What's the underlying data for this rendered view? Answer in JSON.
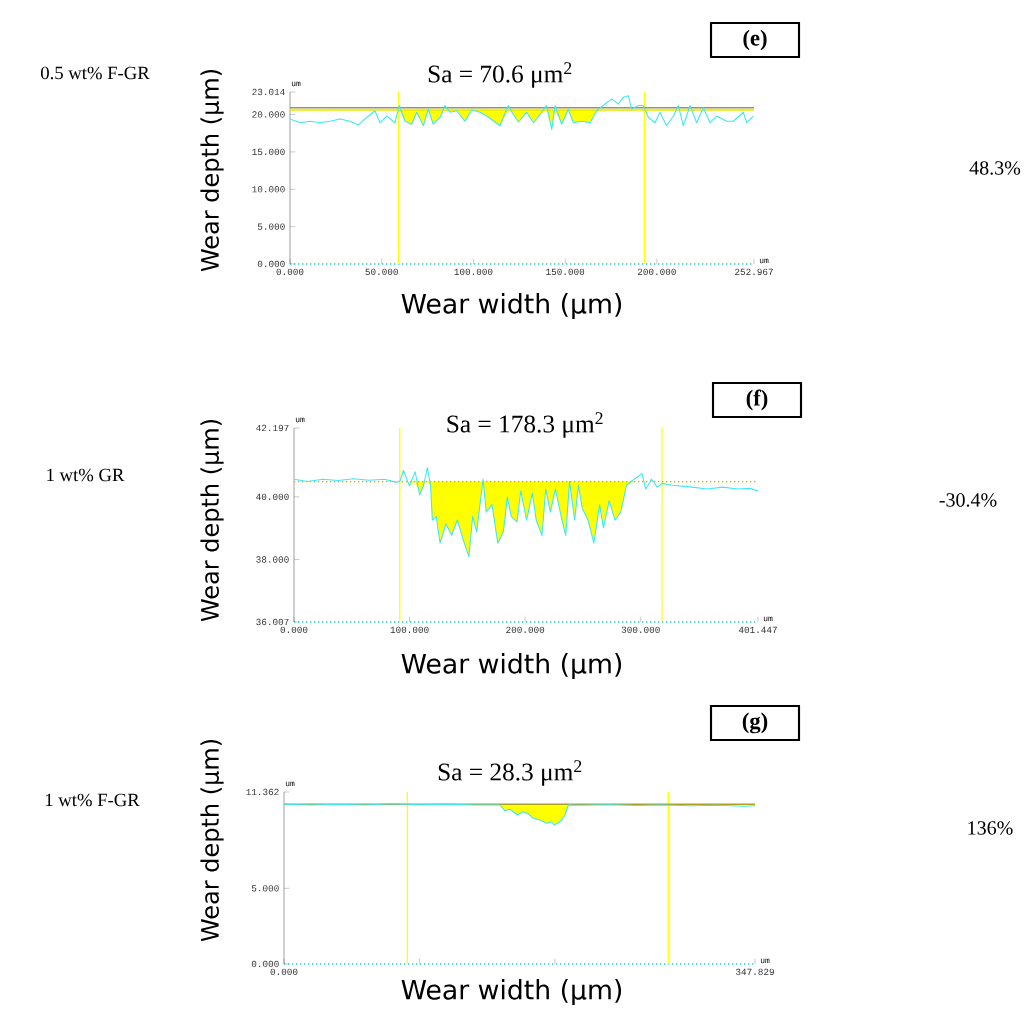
{
  "chart_data": [
    {
      "type": "line",
      "title": "(e)",
      "xlabel": "Wear width (μm)",
      "ylabel": "Wear depth (μm)",
      "annotations": [
        "Sa = 70.6 μm$^{2}$",
        "0.5 wt% F-GR",
        "48.3%",
        "um",
        "um"
      ],
      "xlim": [
        0,
        252.967
      ],
      "ylim": [
        0,
        23.014
      ],
      "xticks": [
        {
          "value": 0,
          "label": "0.000"
        },
        {
          "value": 50,
          "label": "50.000"
        },
        {
          "value": 100,
          "label": "100.000"
        },
        {
          "value": 150,
          "label": "150.000"
        },
        {
          "value": 200,
          "label": "200.000"
        },
        {
          "value": 252.967,
          "label": "252.967"
        }
      ],
      "yticks": [
        {
          "value": 0,
          "label": "0.000"
        },
        {
          "value": 5,
          "label": "5.000"
        },
        {
          "value": 10,
          "label": "10.000"
        },
        {
          "value": 15,
          "label": "15.000"
        },
        {
          "value": 20,
          "label": "20.000"
        },
        {
          "value": 23.014,
          "label": "23.014"
        }
      ],
      "ref_lines": [
        {
          "axis": "x",
          "value": 59.1,
          "color": "#ffff00"
        },
        {
          "axis": "x",
          "value": 193.2,
          "color": "#ffff00"
        },
        {
          "axis": "y",
          "value": 20.9,
          "color": "#a09a30"
        },
        {
          "axis": "y",
          "value": 20.6,
          "color": "#e6e600"
        }
      ],
      "series": [
        {
          "type": "area",
          "color": "#ffff00",
          "x": [
            59.1,
            59.6,
            62.7,
            66.3,
            69.1,
            72.7,
            75.4,
            78.1,
            81.8,
            84.5,
            87.2,
            90.9,
            95.4,
            99.0,
            103.6,
            107.2,
            114.5,
            119.0,
            121.8,
            124.5,
            129.0,
            132.7,
            136.3,
            139.9,
            142.7,
            144.5,
            148.1,
            151.7,
            154.5,
            159.0,
            163.6,
            167.2,
            171.7,
            193.2
          ],
          "values": [
            20.6,
            20.6,
            19.1,
            18.7,
            20.3,
            18.5,
            20.6,
            18.7,
            19.6,
            20.6,
            20.3,
            20.5,
            19.1,
            20.6,
            20.3,
            19.8,
            18.5,
            20.6,
            20.0,
            19.0,
            20.3,
            18.9,
            20.0,
            20.6,
            18.0,
            20.6,
            18.7,
            20.6,
            18.9,
            19.1,
            18.9,
            20.5,
            20.6,
            20.6
          ]
        },
        {
          "color": "#3ee8f2",
          "x": [
            0.0,
            5.5,
            10.9,
            16.4,
            21.8,
            27.3,
            32.7,
            37.3,
            41.8,
            46.3,
            49.1,
            52.7,
            57.2,
            59.6,
            62.7,
            66.3,
            69.1,
            72.7,
            75.4,
            78.1,
            81.8,
            84.5,
            87.2,
            90.9,
            95.4,
            99.0,
            103.6,
            107.2,
            114.5,
            119.0,
            121.8,
            124.5,
            129.0,
            132.7,
            136.3,
            139.9,
            142.7,
            144.5,
            148.1,
            151.7,
            154.5,
            159.0,
            163.6,
            167.2,
            171.7,
            175.4,
            179.0,
            181.7,
            184.5,
            186.3,
            189.9,
            192.6,
            195.4,
            199.0,
            201.7,
            205.3,
            209.0,
            211.7,
            214.4,
            218.1,
            221.7,
            225.3,
            229.0,
            232.6,
            238.1,
            241.7,
            247.1,
            249.0,
            252.6
          ],
          "values": [
            19.4,
            18.9,
            19.1,
            18.9,
            19.1,
            19.4,
            19.1,
            18.6,
            19.6,
            20.5,
            18.9,
            19.8,
            18.9,
            21.2,
            19.1,
            18.7,
            20.3,
            18.5,
            20.7,
            18.7,
            19.6,
            21.2,
            20.3,
            20.5,
            19.1,
            20.6,
            20.3,
            19.8,
            18.5,
            21.2,
            20.0,
            19.0,
            20.3,
            18.9,
            20.0,
            21.2,
            18.0,
            21.2,
            18.7,
            20.7,
            18.9,
            19.1,
            18.9,
            20.5,
            21.4,
            22.1,
            21.4,
            22.3,
            22.5,
            20.7,
            21.2,
            21.2,
            19.6,
            18.9,
            20.3,
            18.5,
            19.8,
            21.2,
            18.5,
            21.2,
            18.9,
            20.9,
            18.9,
            19.8,
            19.1,
            19.1,
            20.3,
            18.9,
            19.8
          ]
        }
      ]
    },
    {
      "type": "line",
      "title": "(f)",
      "xlabel": "Wear width (μm)",
      "ylabel": "Wear depth (μm)",
      "annotations": [
        "Sa = 178.3 μm$^{2}$",
        "1 wt% GR",
        "-30.4%",
        "um",
        "um"
      ],
      "xlim": [
        0,
        401.447
      ],
      "ylim": [
        36.007,
        42.197
      ],
      "xticks": [
        {
          "value": 0,
          "label": "0.000"
        },
        {
          "value": 100,
          "label": "100.000"
        },
        {
          "value": 200,
          "label": "200.000"
        },
        {
          "value": 300,
          "label": "300.000"
        },
        {
          "value": 401.447,
          "label": "401.447"
        }
      ],
      "yticks": [
        {
          "value": 36.007,
          "label": "36.007"
        },
        {
          "value": 38,
          "label": "38.000"
        },
        {
          "value": 40,
          "label": "40.000"
        },
        {
          "value": 42.197,
          "label": "42.197"
        }
      ],
      "ref_lines": [
        {
          "axis": "x",
          "value": 91.5,
          "color": "#ffff00"
        },
        {
          "axis": "x",
          "value": 318.3,
          "color": "#ffff00"
        },
        {
          "axis": "y",
          "value": 40.49,
          "color": "#c8b400",
          "line_style": "dotted"
        }
      ],
      "series": [
        {
          "type": "area",
          "color": "#ffff00",
          "x": [
            99.8,
            104.8,
            108.7,
            112.1,
            115.4,
            118.1,
            119.7,
            123.0,
            126.4,
            131.4,
            136.4,
            141.3,
            146.3,
            151.3,
            154.6,
            158.0,
            163.6,
            166.3,
            171.3,
            176.3,
            181.2,
            184.6,
            187.9,
            192.9,
            196.2,
            201.2,
            206.2,
            209.5,
            214.5,
            217.8,
            221.8,
            226.1,
            231.1,
            235.1,
            238.4,
            242.8,
            246.1,
            249.4,
            254.4,
            259.4,
            264.4,
            267.7,
            272.7,
            277.7,
            282.7,
            287.7,
            294.3
          ],
          "values": [
            40.35,
            40.49,
            40.06,
            40.37,
            40.49,
            40.37,
            39.26,
            39.38,
            38.52,
            39.14,
            38.77,
            39.26,
            38.64,
            38.09,
            39.38,
            38.89,
            40.49,
            39.51,
            39.75,
            38.52,
            38.89,
            40.0,
            39.38,
            39.2,
            40.19,
            39.26,
            40.12,
            39.26,
            38.77,
            40.25,
            39.51,
            40.25,
            39.38,
            38.77,
            40.49,
            39.26,
            40.37,
            39.63,
            39.26,
            38.52,
            39.75,
            39.01,
            39.88,
            39.26,
            39.51,
            40.37,
            40.49
          ]
        },
        {
          "color": "#3ee8f2",
          "x": [
            0.0,
            11.6,
            25.0,
            38.2,
            51.6,
            64.9,
            78.2,
            88.1,
            91.5,
            94.8,
            99.8,
            104.8,
            108.7,
            112.1,
            115.4,
            118.1,
            119.7,
            123.0,
            126.4,
            131.4,
            136.4,
            141.3,
            146.3,
            151.3,
            154.6,
            158.0,
            163.6,
            166.3,
            171.3,
            176.3,
            181.2,
            184.6,
            187.9,
            192.9,
            196.2,
            201.2,
            206.2,
            209.5,
            214.5,
            217.8,
            221.8,
            226.1,
            231.1,
            235.1,
            238.4,
            242.8,
            246.1,
            249.4,
            254.4,
            259.4,
            264.4,
            267.7,
            272.7,
            277.7,
            282.7,
            287.7,
            294.3,
            301.0,
            304.3,
            309.3,
            314.3,
            318.3,
            327.6,
            344.2,
            357.5,
            370.8,
            384.1,
            394.1,
            401.4
          ],
          "values": [
            40.56,
            40.49,
            40.56,
            40.52,
            40.58,
            40.53,
            40.56,
            40.47,
            40.49,
            40.84,
            40.35,
            40.8,
            40.06,
            40.37,
            40.93,
            40.37,
            39.26,
            39.38,
            38.52,
            39.14,
            38.77,
            39.26,
            38.64,
            38.09,
            39.38,
            38.89,
            40.56,
            39.51,
            39.75,
            38.52,
            38.89,
            40.0,
            39.38,
            39.2,
            40.19,
            39.26,
            40.12,
            39.26,
            38.77,
            40.25,
            39.51,
            40.25,
            39.38,
            38.77,
            40.49,
            39.26,
            40.37,
            39.63,
            39.26,
            38.52,
            39.75,
            39.01,
            39.88,
            39.26,
            39.51,
            40.37,
            40.56,
            40.74,
            40.25,
            40.56,
            40.31,
            40.43,
            40.37,
            40.31,
            40.25,
            40.31,
            40.25,
            40.27,
            40.19
          ]
        }
      ]
    },
    {
      "type": "line",
      "title": "(g)",
      "xlabel": "Wear width (μm)",
      "ylabel": "Wear depth (μm)",
      "annotations": [
        "Sa = 28.3 μm$^{2}$",
        "1 wt% F-GR",
        "136%",
        "um",
        "um"
      ],
      "xlim": [
        0,
        347.829
      ],
      "ylim": [
        0,
        11.362
      ],
      "xticks": [
        {
          "value": 0,
          "label": "0.000"
        },
        {
          "value": 100,
          "label": null
        },
        {
          "value": 200,
          "label": null
        },
        {
          "value": 347.829,
          "label": "347.829"
        }
      ],
      "yticks": [
        {
          "value": 0,
          "label": "0.000"
        },
        {
          "value": 5,
          "label": "5.000"
        },
        {
          "value": 11.362,
          "label": "11.362"
        }
      ],
      "ref_lines": [
        {
          "axis": "x",
          "value": 91.1,
          "color": "#ffff00"
        },
        {
          "axis": "x",
          "value": 283.8,
          "color": "#ffff00"
        },
        {
          "axis": "y",
          "value": 10.55,
          "color": "#b0a020"
        }
      ],
      "series": [
        {
          "type": "area",
          "color": "#ffff00",
          "x": [
            159.5,
            163.2,
            166.9,
            172.3,
            176.7,
            180.4,
            184.1,
            189.0,
            194.0,
            197.7,
            199.4,
            202.6,
            205.1,
            207.5,
            210.0
          ],
          "values": [
            10.5,
            10.13,
            10.22,
            9.84,
            10.06,
            9.91,
            9.62,
            9.51,
            9.29,
            9.4,
            9.18,
            9.33,
            9.51,
            9.84,
            10.5
          ]
        },
        {
          "color": "#3ee8f2",
          "x": [
            0,
            20,
            40,
            60,
            80,
            100,
            120,
            140,
            159.5,
            163.2,
            166.9,
            172.3,
            176.7,
            180.4,
            184.1,
            189.0,
            194.0,
            197.7,
            199.4,
            202.6,
            205.1,
            207.5,
            210.0,
            220,
            240,
            260,
            280,
            300,
            320,
            340,
            347.8
          ],
          "values": [
            10.55,
            10.5,
            10.55,
            10.5,
            10.58,
            10.52,
            10.56,
            10.5,
            10.5,
            10.13,
            10.22,
            9.84,
            10.06,
            9.91,
            9.62,
            9.51,
            9.29,
            9.4,
            9.18,
            9.33,
            9.51,
            9.84,
            10.5,
            10.48,
            10.52,
            10.47,
            10.5,
            10.45,
            10.48,
            10.42,
            10.45
          ]
        }
      ]
    }
  ]
}
